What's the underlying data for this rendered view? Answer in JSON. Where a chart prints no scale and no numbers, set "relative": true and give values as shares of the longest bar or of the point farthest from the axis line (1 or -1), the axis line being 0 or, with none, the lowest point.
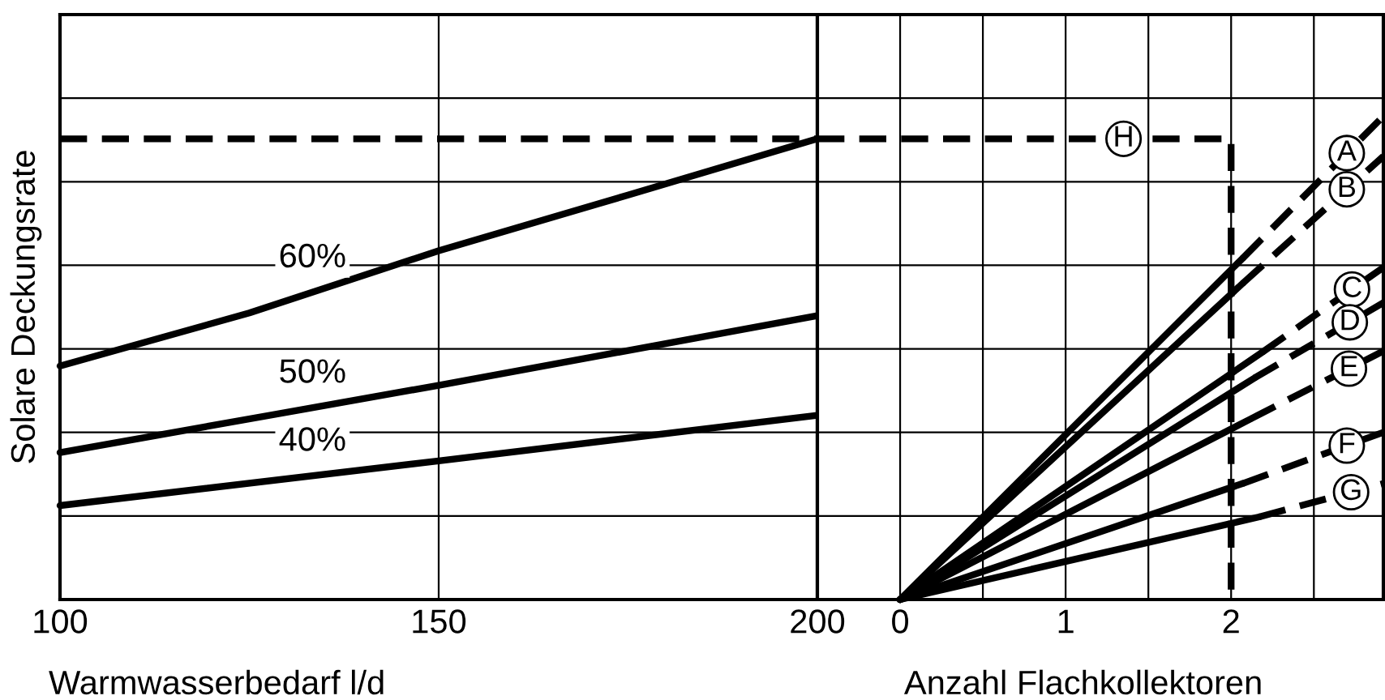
{
  "chart_data": [
    {
      "type": "line",
      "relative": true,
      "xlabel": "Warmwasserbedarf l/d",
      "ylabel": "Solare Deckungsrate",
      "xlim": [
        100,
        200
      ],
      "xticks": [
        100,
        150,
        200
      ],
      "grid": true,
      "series": [
        {
          "name": "60%",
          "x": [
            100,
            125,
            150,
            175,
            200
          ],
          "values": [
            0.507,
            0.622,
            0.757,
            0.878,
            1.0
          ],
          "color": "#000000",
          "line_style": "solid"
        },
        {
          "name": "50%",
          "x": [
            100,
            150,
            200
          ],
          "values": [
            0.319,
            0.465,
            0.616
          ],
          "color": "#000000",
          "line_style": "solid"
        },
        {
          "name": "40%",
          "x": [
            100,
            150,
            200
          ],
          "values": [
            0.204,
            0.301,
            0.4
          ],
          "color": "#000000",
          "line_style": "solid"
        },
        {
          "x": [
            100,
            200
          ],
          "values": [
            1.0,
            1.0
          ],
          "color": "#000000",
          "line_style": "dashed"
        }
      ]
    },
    {
      "type": "line",
      "relative": true,
      "legend": "right",
      "xlabel": "Anzahl Flachkollektoren",
      "xlim": [
        -0.5,
        2.92
      ],
      "xticks": [
        {
          "value": -0.5,
          "label": null
        },
        0,
        {
          "value": 0.5,
          "label": null
        },
        1,
        {
          "value": 1.5,
          "label": null
        },
        2,
        {
          "value": 2.5,
          "label": null
        }
      ],
      "grid": true,
      "series": [
        {
          "x": [
            0,
            2.07
          ],
          "values": [
            0,
            0.706
          ],
          "color": "#000000",
          "line_style": "solid"
        },
        {
          "name": "A",
          "x": [
            2.07,
            2.92
          ],
          "values": [
            0.706,
            1.0
          ],
          "color": "#000000",
          "line_style": "dashed"
        },
        {
          "x": [
            0,
            2.07
          ],
          "values": [
            0,
            0.654
          ],
          "color": "#000000",
          "line_style": "solid"
        },
        {
          "name": "B",
          "x": [
            2.07,
            2.92
          ],
          "values": [
            0.654,
            0.917
          ],
          "color": "#000000",
          "line_style": "dashed"
        },
        {
          "x": [
            0,
            2.19
          ],
          "values": [
            0,
            0.512
          ],
          "color": "#000000",
          "line_style": "solid"
        },
        {
          "name": "C",
          "x": [
            2.19,
            2.92
          ],
          "values": [
            0.512,
            0.687
          ],
          "color": "#000000",
          "line_style": "dashed"
        },
        {
          "x": [
            0,
            2.14
          ],
          "values": [
            0,
            0.458
          ],
          "color": "#000000",
          "line_style": "solid"
        },
        {
          "name": "D",
          "x": [
            2.14,
            2.92
          ],
          "values": [
            0.458,
            0.614
          ],
          "color": "#000000",
          "line_style": "dashed"
        },
        {
          "x": [
            0,
            2.12
          ],
          "values": [
            0,
            0.374
          ],
          "color": "#000000",
          "line_style": "solid"
        },
        {
          "name": "E",
          "x": [
            2.12,
            2.92
          ],
          "values": [
            0.374,
            0.514
          ],
          "color": "#000000",
          "line_style": "dashed"
        },
        {
          "x": [
            0,
            2.07
          ],
          "values": [
            0,
            0.24
          ],
          "color": "#000000",
          "line_style": "solid"
        },
        {
          "name": "F",
          "x": [
            2.07,
            2.92
          ],
          "values": [
            0.24,
            0.346
          ],
          "color": "#000000",
          "line_style": "dashed"
        },
        {
          "x": [
            0,
            2.17
          ],
          "values": [
            0,
            0.171
          ],
          "color": "#000000",
          "line_style": "solid"
        },
        {
          "name": "G",
          "x": [
            2.17,
            2.92
          ],
          "values": [
            0.171,
            0.24
          ],
          "color": "#000000",
          "line_style": "dashed"
        },
        {
          "name": "H",
          "x": [
            -0.5,
            2,
            2
          ],
          "values": [
            0.953,
            0.953,
            0
          ],
          "color": "#000000",
          "line_style": "dashed"
        }
      ]
    }
  ]
}
